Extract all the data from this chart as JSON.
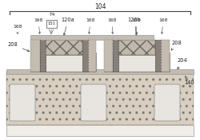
{
  "figsize": [
    2.5,
    1.76
  ],
  "dpi": 100,
  "label_104": "104",
  "label_140": "140",
  "label_208_left": "208",
  "label_208_right": "208",
  "label_204": "204",
  "label_120a": "120a",
  "label_120b": "120b",
  "label_T4": "T4",
  "label_151": "151",
  "label_168": "168",
  "colors": {
    "white": "#ffffff",
    "bg": "#f5f2ee",
    "substrate_hatch": "#c8bfb0",
    "substrate_bg": "#d8cfc0",
    "epi_gray": "#b8b0a4",
    "gate_top_hatch": "#c0b8a8",
    "gate_poly_white": "#e8e4de",
    "spacer_dark": "#888078",
    "thin_oxide_layer": "#c4bcb0",
    "bottom_white": "#f0ede8",
    "border": "#444444",
    "text": "#222222",
    "dashed": "#555555"
  }
}
